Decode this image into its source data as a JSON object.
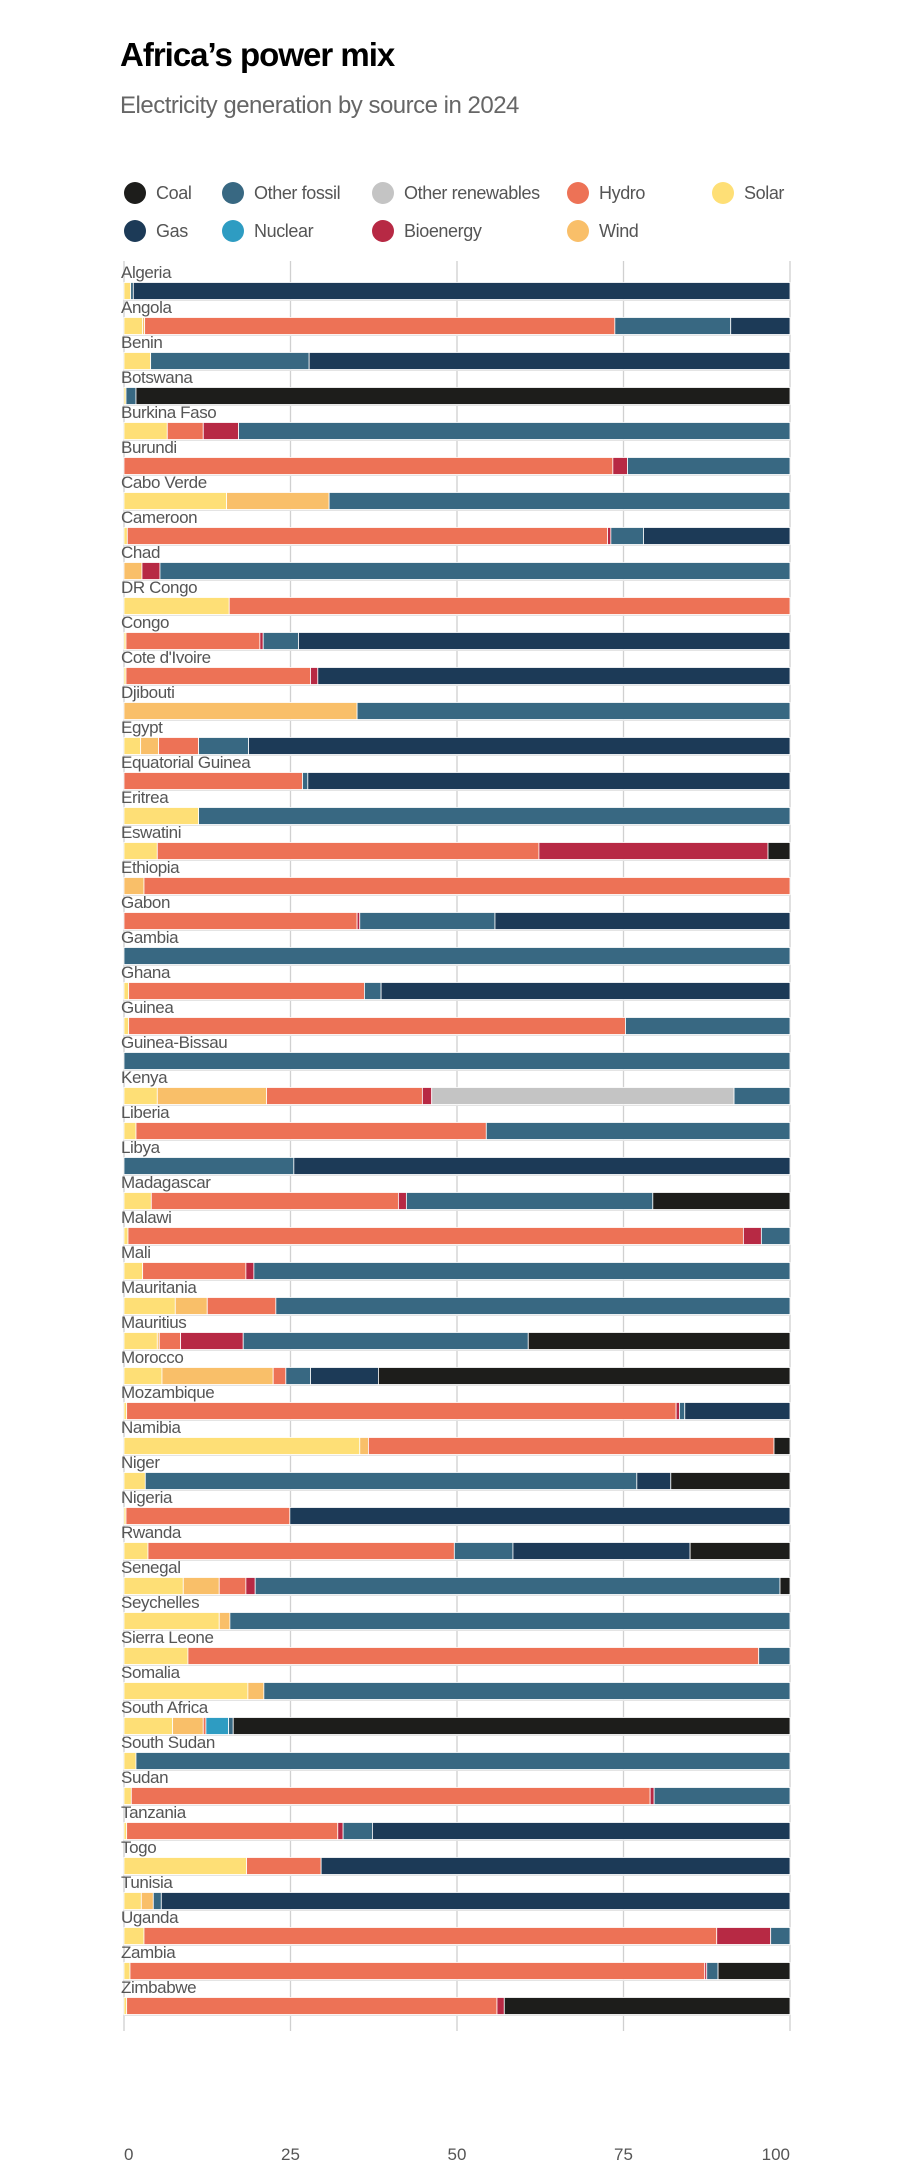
{
  "title": "Africa’s power mix",
  "subtitle": "Electricity generation by source in 2024",
  "chart_data": {
    "type": "bar",
    "orientation": "horizontal",
    "stacked": true,
    "unit": "percent",
    "xlim": [
      0,
      100
    ],
    "x_ticks": [
      "0",
      "25",
      "50",
      "75",
      "100"
    ],
    "grid": true,
    "legend_placement": "top",
    "legend": [
      {
        "key": "coal",
        "label": "Coal",
        "color": "#1d1d1b"
      },
      {
        "key": "gas",
        "label": "Gas",
        "color": "#1c3a57"
      },
      {
        "key": "other_fossil",
        "label": "Other fossil",
        "color": "#386882"
      },
      {
        "key": "nuclear",
        "label": "Nuclear",
        "color": "#2e9cc2"
      },
      {
        "key": "other_renewables",
        "label": "Other renewables",
        "color": "#c4c4c4"
      },
      {
        "key": "bioenergy",
        "label": "Bioenergy",
        "color": "#b72944"
      },
      {
        "key": "hydro",
        "label": "Hydro",
        "color": "#ed7256"
      },
      {
        "key": "wind",
        "label": "Wind",
        "color": "#f9bf69"
      },
      {
        "key": "solar",
        "label": "Solar",
        "color": "#fedf76"
      }
    ],
    "stack_order": [
      "solar",
      "wind",
      "hydro",
      "bioenergy",
      "other_renewables",
      "nuclear",
      "other_fossil",
      "gas",
      "coal"
    ],
    "categories": [
      "Algeria",
      "Angola",
      "Benin",
      "Botswana",
      "Burkina Faso",
      "Burundi",
      "Cabo Verde",
      "Cameroon",
      "Chad",
      "DR Congo",
      "Congo",
      "Cote d'Ivoire",
      "Djibouti",
      "Egypt",
      "Equatorial Guinea",
      "Eritrea",
      "Eswatini",
      "Ethiopia",
      "Gabon",
      "Gambia",
      "Ghana",
      "Guinea",
      "Guinea-Bissau",
      "Kenya",
      "Liberia",
      "Libya",
      "Madagascar",
      "Malawi",
      "Mali",
      "Mauritania",
      "Mauritius",
      "Morocco",
      "Mozambique",
      "Namibia",
      "Niger",
      "Nigeria",
      "Rwanda",
      "Senegal",
      "Seychelles",
      "Sierra Leone",
      "Somalia",
      "South Africa",
      "South Sudan",
      "Sudan",
      "Tanzania",
      "Togo",
      "Tunisia",
      "Uganda",
      "Zambia",
      "Zimbabwe"
    ],
    "values": [
      [
        1.0,
        0,
        0,
        0,
        0,
        0,
        0.4,
        98.6,
        0
      ],
      [
        2.8,
        0.3,
        70.6,
        0,
        0,
        0,
        17.4,
        8.9,
        0
      ],
      [
        4.0,
        0,
        0,
        0,
        0,
        0,
        23.8,
        72.2,
        0
      ],
      [
        0.3,
        0,
        0,
        0,
        0,
        0,
        1.5,
        0,
        98.2
      ],
      [
        6.5,
        0,
        5.4,
        5.3,
        0,
        0,
        82.8,
        0,
        0
      ],
      [
        0,
        0,
        73.4,
        2.2,
        0,
        0,
        24.4,
        0,
        0
      ],
      [
        15.4,
        15.4,
        0,
        0,
        0,
        0,
        69.2,
        0,
        0
      ],
      [
        0.5,
        0,
        72.1,
        0.5,
        0,
        0,
        4.9,
        22.0,
        0
      ],
      [
        0,
        2.7,
        0,
        2.7,
        0,
        0,
        94.6,
        0,
        0
      ],
      [
        15.8,
        0,
        84.2,
        0,
        0,
        0,
        0,
        0,
        0
      ],
      [
        0.3,
        0,
        20.1,
        0.5,
        0,
        0,
        5.3,
        73.8,
        0
      ],
      [
        0.3,
        0,
        27.7,
        1.1,
        0,
        0,
        0,
        70.9,
        0
      ],
      [
        0,
        35.0,
        0,
        0,
        0,
        0,
        65.0,
        0,
        0
      ],
      [
        2.5,
        2.7,
        6.0,
        0,
        0,
        0,
        7.5,
        81.3,
        0
      ],
      [
        0,
        0,
        26.8,
        0,
        0,
        0,
        0.8,
        72.4,
        0
      ],
      [
        11.2,
        0,
        0,
        0,
        0,
        0,
        88.8,
        0,
        0
      ],
      [
        5.0,
        0,
        57.3,
        34.4,
        0,
        0,
        0,
        0,
        3.3
      ],
      [
        0,
        3.0,
        97.0,
        0,
        0,
        0,
        0,
        0,
        0
      ],
      [
        0,
        0,
        35.0,
        0.4,
        0,
        0,
        20.3,
        44.3,
        0
      ],
      [
        0,
        0,
        0,
        0,
        0,
        0,
        100,
        0,
        0
      ],
      [
        0.7,
        0,
        35.4,
        0,
        0,
        0,
        2.5,
        61.4,
        0
      ],
      [
        0.7,
        0,
        74.6,
        0,
        0,
        0,
        24.7,
        0,
        0
      ],
      [
        0,
        0,
        0,
        0,
        0,
        0,
        100,
        0,
        0
      ],
      [
        5.0,
        16.4,
        23.4,
        1.4,
        45.4,
        0,
        8.4,
        0,
        0
      ],
      [
        1.8,
        0,
        52.6,
        0,
        0,
        0,
        45.6,
        0,
        0
      ],
      [
        0,
        0,
        0,
        0,
        0,
        0,
        25.5,
        74.5,
        0
      ],
      [
        4.1,
        0,
        37.1,
        1.2,
        0,
        0,
        37.0,
        0,
        20.6
      ],
      [
        0.6,
        0,
        92.4,
        2.7,
        0,
        0,
        4.3,
        0,
        0
      ],
      [
        2.8,
        0,
        15.5,
        1.2,
        0,
        0,
        80.5,
        0,
        0
      ],
      [
        7.7,
        4.8,
        10.3,
        0,
        0,
        0,
        77.2,
        0,
        0
      ],
      [
        5.0,
        0.3,
        3.2,
        9.4,
        0,
        0,
        42.8,
        0,
        39.3
      ],
      [
        5.7,
        16.7,
        1.9,
        0,
        0,
        0,
        3.7,
        10.2,
        61.8
      ],
      [
        0.4,
        0,
        82.5,
        0.5,
        0,
        0,
        0.8,
        15.8,
        0
      ],
      [
        35.4,
        1.3,
        60.9,
        0,
        0,
        0,
        0,
        0,
        2.4
      ],
      [
        3.2,
        0,
        0,
        0,
        0,
        0,
        73.8,
        5.1,
        17.9
      ],
      [
        0.3,
        0,
        24.6,
        0,
        0,
        0,
        0,
        75.1,
        0
      ],
      [
        3.6,
        0,
        46.0,
        0,
        0,
        0,
        8.8,
        26.6,
        15.0
      ],
      [
        8.9,
        5.4,
        4.0,
        1.4,
        0,
        0,
        78.8,
        0,
        1.5
      ],
      [
        14.3,
        1.6,
        0,
        0,
        0,
        0,
        84.1,
        0,
        0
      ],
      [
        9.6,
        0,
        85.7,
        0,
        0,
        0,
        4.7,
        0,
        0
      ],
      [
        18.6,
        2.4,
        0,
        0,
        0,
        0,
        79.0,
        0,
        0
      ],
      [
        7.3,
        4.6,
        0.4,
        0,
        0,
        3.4,
        0.7,
        0,
        83.6
      ],
      [
        1.8,
        0,
        0,
        0,
        0,
        0,
        98.2,
        0,
        0
      ],
      [
        1.1,
        0,
        77.9,
        0.6,
        0,
        0,
        20.4,
        0,
        0
      ],
      [
        0.4,
        0,
        31.7,
        0.8,
        0,
        0,
        4.4,
        62.7,
        0
      ],
      [
        18.4,
        0,
        11.2,
        0,
        0,
        0,
        0,
        70.4,
        0
      ],
      [
        2.6,
        1.8,
        0,
        0,
        0,
        0,
        1.2,
        94.4,
        0
      ],
      [
        3.0,
        0,
        86.0,
        8.1,
        0,
        0,
        2.9,
        0,
        0
      ],
      [
        0.9,
        0,
        86.3,
        0.3,
        0,
        0,
        1.7,
        0,
        10.8
      ],
      [
        0.4,
        0,
        55.6,
        1.1,
        0,
        0,
        0,
        0,
        42.9
      ]
    ]
  }
}
